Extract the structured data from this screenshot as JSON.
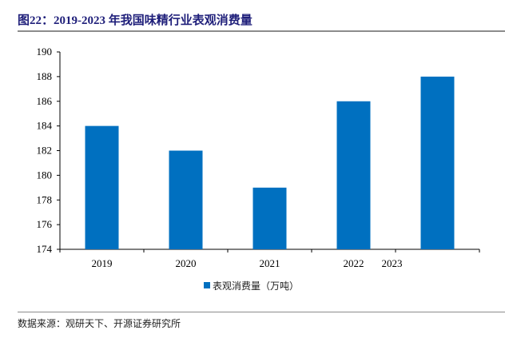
{
  "title": "图22：2019-2023 年我国味精行业表观消费量",
  "source": "数据来源：观研天下、开源证券研究所",
  "chart_data": {
    "type": "bar",
    "title": "图22：2019-2023 年我国味精行业表观消费量",
    "categories": [
      "2019",
      "2020",
      "2021",
      "2022",
      "2023"
    ],
    "series": [
      {
        "name": "表观消费量（万吨）",
        "values": [
          184,
          182,
          179,
          186,
          188
        ],
        "color": "#0070c0"
      }
    ],
    "ylim": [
      174,
      190
    ],
    "yticks": [
      174,
      176,
      178,
      180,
      182,
      184,
      186,
      188,
      190
    ],
    "xlabel": "",
    "ylabel": "",
    "grid": false,
    "legend": "bottom-center"
  }
}
